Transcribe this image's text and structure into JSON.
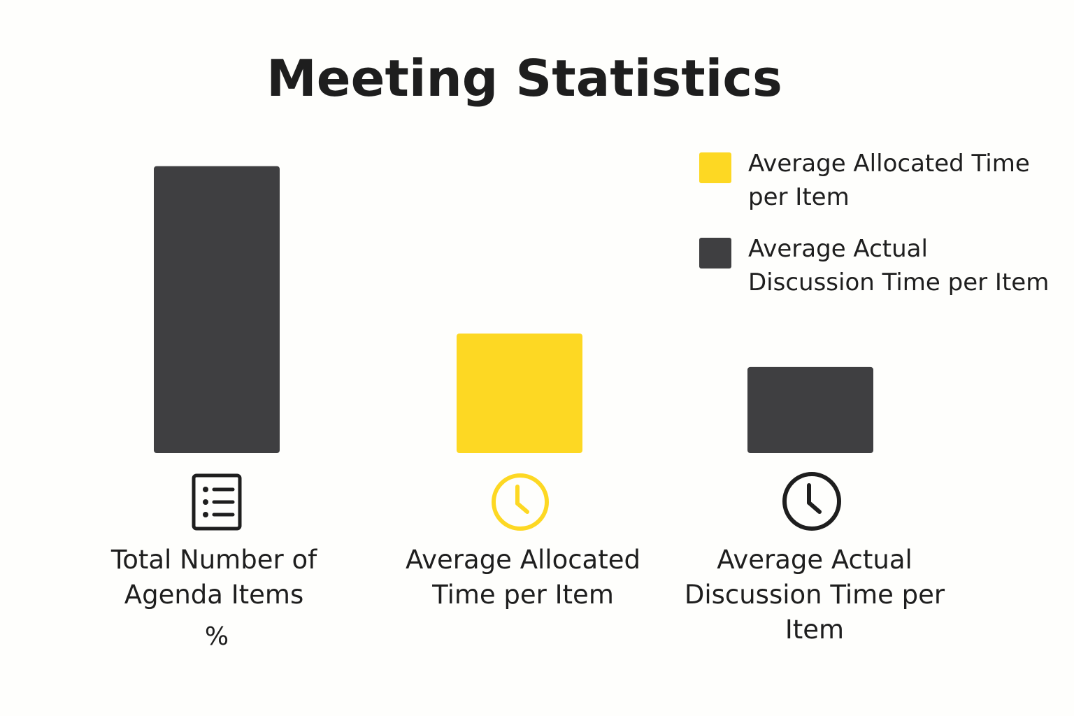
{
  "chart_data": {
    "type": "bar",
    "title": "Meeting Statistics",
    "categories": [
      "Total Number of Agenda Items",
      "Average Allocated Time per Item",
      "Average Actual Discussion Time per Item"
    ],
    "values": [
      2.4,
      1.0,
      0.72
    ],
    "bar_colors": [
      "#3f3f41",
      "#fdd823",
      "#3f3f41"
    ],
    "category_notes": [
      "%",
      "",
      ""
    ],
    "category_icons": [
      "list-icon",
      "clock-icon",
      "clock-icon"
    ],
    "icon_colors": [
      "#1e1e1e",
      "#fdd823",
      "#1e1e1e"
    ],
    "legend": [
      {
        "label": "Average Allocated Time per Item",
        "color": "#fdd823"
      },
      {
        "label": "Average Actual Discussion Time per Item",
        "color": "#3f3f41"
      }
    ],
    "legend_position": "top-right",
    "xlabel": "",
    "ylabel": "",
    "grid": false,
    "axes_visible": false
  }
}
